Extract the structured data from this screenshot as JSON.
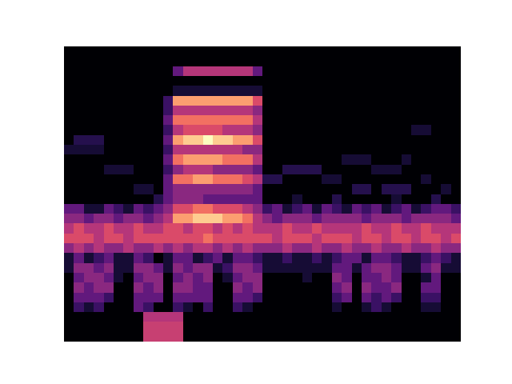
{
  "chart_data": {
    "type": "heatmap",
    "color": "magma",
    "zlim": [
      0,
      1
    ],
    "tick_labels": false,
    "cells": [
      [
        0,
        0,
        0,
        0,
        0,
        0,
        0,
        0,
        0,
        0,
        0,
        0,
        0,
        0,
        0,
        0,
        0,
        0,
        0,
        0,
        0,
        0,
        0,
        0,
        0,
        0,
        0,
        0,
        0,
        0,
        0,
        0,
        0,
        0,
        0,
        0,
        0,
        0,
        0,
        0
      ],
      [
        0,
        0,
        0,
        0,
        0,
        0,
        0,
        0,
        0,
        0,
        0,
        0,
        0,
        0,
        0,
        0,
        0,
        0,
        0,
        0,
        0,
        0,
        0,
        0,
        0,
        0,
        0,
        0,
        0,
        0,
        0,
        0,
        0,
        0,
        0,
        0,
        0,
        0,
        0,
        0
      ],
      [
        0,
        0,
        0,
        0,
        0,
        0,
        0,
        0,
        0,
        0,
        0,
        0.3,
        0.5,
        0.5,
        0.5,
        0.5,
        0.5,
        0.5,
        0.5,
        0.3,
        0,
        0,
        0,
        0,
        0,
        0,
        0,
        0,
        0,
        0,
        0,
        0,
        0,
        0,
        0,
        0,
        0,
        0,
        0,
        0
      ],
      [
        0,
        0,
        0,
        0,
        0,
        0,
        0,
        0,
        0,
        0,
        0,
        0,
        0,
        0,
        0,
        0,
        0,
        0,
        0,
        0,
        0,
        0,
        0,
        0,
        0,
        0,
        0,
        0,
        0,
        0,
        0,
        0,
        0,
        0,
        0,
        0,
        0,
        0,
        0,
        0
      ],
      [
        0,
        0,
        0,
        0,
        0,
        0,
        0,
        0,
        0,
        0,
        0,
        0.1,
        0.1,
        0.1,
        0.1,
        0.1,
        0.1,
        0.1,
        0.1,
        0.1,
        0,
        0,
        0,
        0,
        0,
        0,
        0,
        0,
        0,
        0,
        0,
        0,
        0,
        0,
        0,
        0,
        0,
        0,
        0,
        0
      ],
      [
        0,
        0,
        0,
        0,
        0,
        0,
        0,
        0,
        0,
        0,
        0.2,
        0.8,
        0.8,
        0.8,
        0.8,
        0.8,
        0.8,
        0.8,
        0.8,
        0.6,
        0,
        0,
        0,
        0,
        0,
        0,
        0,
        0,
        0,
        0,
        0,
        0,
        0,
        0,
        0,
        0,
        0,
        0,
        0,
        0
      ],
      [
        0,
        0,
        0,
        0,
        0,
        0,
        0,
        0,
        0,
        0,
        0.2,
        0.5,
        0.5,
        0.5,
        0.5,
        0.5,
        0.5,
        0.5,
        0.5,
        0.4,
        0,
        0,
        0,
        0,
        0,
        0,
        0,
        0,
        0,
        0,
        0,
        0,
        0,
        0,
        0,
        0,
        0,
        0,
        0,
        0
      ],
      [
        0,
        0,
        0,
        0,
        0,
        0,
        0,
        0,
        0,
        0,
        0.3,
        0.7,
        0.7,
        0.7,
        0.7,
        0.7,
        0.7,
        0.7,
        0.7,
        0.5,
        0,
        0,
        0,
        0,
        0,
        0,
        0,
        0,
        0,
        0,
        0,
        0,
        0,
        0,
        0,
        0,
        0,
        0,
        0,
        0
      ],
      [
        0,
        0,
        0,
        0,
        0,
        0,
        0,
        0,
        0,
        0,
        0.2,
        0.5,
        0.6,
        0.6,
        0.6,
        0.6,
        0.5,
        0.5,
        0.5,
        0.4,
        0,
        0,
        0,
        0,
        0,
        0,
        0,
        0,
        0,
        0,
        0,
        0,
        0,
        0,
        0,
        0.1,
        0.1,
        0,
        0,
        0
      ],
      [
        0,
        0.15,
        0.15,
        0.15,
        0,
        0,
        0,
        0,
        0,
        0,
        0.3,
        0.8,
        0.9,
        0.9,
        1.0,
        0.9,
        0.9,
        0.8,
        0.8,
        0.6,
        0,
        0,
        0,
        0,
        0,
        0,
        0,
        0,
        0,
        0,
        0,
        0,
        0,
        0,
        0,
        0,
        0,
        0,
        0,
        0
      ],
      [
        0.1,
        0.1,
        0.1,
        0.1,
        0,
        0,
        0,
        0,
        0,
        0,
        0.2,
        0.5,
        0.5,
        0.5,
        0.5,
        0.5,
        0.5,
        0.5,
        0.4,
        0.4,
        0,
        0,
        0,
        0,
        0,
        0,
        0,
        0,
        0,
        0,
        0,
        0,
        0,
        0,
        0,
        0,
        0,
        0,
        0,
        0
      ],
      [
        0,
        0,
        0,
        0,
        0,
        0,
        0,
        0,
        0,
        0,
        0.3,
        0.7,
        0.8,
        0.8,
        0.8,
        0.8,
        0.7,
        0.7,
        0.7,
        0.5,
        0,
        0,
        0,
        0,
        0,
        0,
        0,
        0,
        0.1,
        0.1,
        0.1,
        0,
        0,
        0,
        0.1,
        0,
        0,
        0,
        0,
        0
      ],
      [
        0,
        0,
        0,
        0,
        0.1,
        0.1,
        0.1,
        0,
        0,
        0,
        0.2,
        0.4,
        0.5,
        0.5,
        0.5,
        0.4,
        0.4,
        0.4,
        0.4,
        0.3,
        0,
        0,
        0.15,
        0.15,
        0.15,
        0.15,
        0,
        0,
        0,
        0,
        0,
        0.1,
        0.1,
        0.1,
        0,
        0,
        0,
        0,
        0,
        0
      ],
      [
        0,
        0,
        0,
        0,
        0,
        0,
        0,
        0,
        0,
        0,
        0.3,
        0.7,
        0.7,
        0.8,
        0.8,
        0.7,
        0.7,
        0.7,
        0.6,
        0.5,
        0.15,
        0.15,
        0,
        0,
        0,
        0,
        0.1,
        0.1,
        0,
        0,
        0,
        0,
        0,
        0,
        0,
        0,
        0.1,
        0,
        0,
        0
      ],
      [
        0,
        0,
        0,
        0,
        0,
        0,
        0,
        0.1,
        0.1,
        0,
        0.3,
        0.4,
        0.4,
        0.4,
        0.4,
        0.4,
        0.4,
        0.4,
        0.4,
        0.3,
        0,
        0,
        0,
        0,
        0,
        0,
        0,
        0,
        0,
        0.15,
        0.15,
        0,
        0.15,
        0.15,
        0.15,
        0,
        0,
        0,
        0.1,
        0
      ],
      [
        0,
        0,
        0,
        0,
        0,
        0,
        0,
        0,
        0,
        0.15,
        0.3,
        0.4,
        0.4,
        0.4,
        0.3,
        0.3,
        0.3,
        0.3,
        0.3,
        0.3,
        0,
        0,
        0,
        0.1,
        0,
        0,
        0,
        0.15,
        0,
        0,
        0,
        0,
        0,
        0.1,
        0,
        0,
        0,
        0.15,
        0,
        0
      ],
      [
        0.3,
        0.3,
        0.1,
        0.1,
        0.3,
        0.2,
        0.1,
        0.3,
        0.2,
        0.3,
        0.4,
        0.6,
        0.6,
        0.7,
        0.7,
        0.6,
        0.6,
        0.6,
        0.5,
        0.4,
        0.2,
        0.3,
        0.1,
        0.2,
        0.3,
        0.1,
        0.3,
        0.2,
        0.1,
        0.3,
        0.2,
        0.3,
        0.1,
        0.2,
        0.3,
        0.1,
        0.2,
        0.3,
        0.3,
        0.2
      ],
      [
        0.4,
        0.4,
        0.3,
        0.4,
        0.4,
        0.3,
        0.4,
        0.4,
        0.3,
        0.4,
        0.5,
        0.8,
        0.8,
        0.9,
        0.9,
        0.9,
        0.8,
        0.8,
        0.7,
        0.5,
        0.4,
        0.3,
        0.4,
        0.4,
        0.4,
        0.3,
        0.4,
        0.4,
        0.4,
        0.4,
        0.3,
        0.4,
        0.4,
        0.4,
        0.3,
        0.4,
        0.4,
        0.4,
        0.4,
        0.3
      ],
      [
        0.5,
        0.6,
        0.5,
        0.5,
        0.6,
        0.5,
        0.5,
        0.6,
        0.5,
        0.5,
        0.6,
        0.6,
        0.5,
        0.6,
        0.6,
        0.5,
        0.6,
        0.5,
        0.6,
        0.5,
        0.5,
        0.5,
        0.6,
        0.5,
        0.5,
        0.6,
        0.5,
        0.5,
        0.5,
        0.5,
        0.6,
        0.5,
        0.5,
        0.6,
        0.5,
        0.5,
        0.6,
        0.5,
        0.5,
        0.5
      ],
      [
        0.6,
        0.6,
        0.6,
        0.5,
        0.6,
        0.6,
        0.5,
        0.6,
        0.6,
        0.6,
        0.6,
        0.6,
        0.6,
        0.6,
        0.7,
        0.6,
        0.6,
        0.6,
        0.6,
        0.6,
        0.6,
        0.5,
        0.6,
        0.6,
        0.6,
        0.5,
        0.6,
        0.6,
        0.6,
        0.5,
        0.6,
        0.6,
        0.5,
        0.6,
        0.6,
        0.5,
        0.6,
        0.6,
        0.5,
        0.6
      ],
      [
        0.4,
        0.5,
        0.4,
        0.5,
        0.4,
        0.4,
        0.5,
        0.4,
        0.4,
        0.5,
        0.4,
        0.5,
        0.4,
        0.5,
        0.5,
        0.4,
        0.5,
        0.4,
        0.5,
        0.4,
        0.4,
        0.4,
        0.5,
        0.4,
        0.4,
        0.5,
        0.4,
        0.4,
        0.5,
        0.4,
        0.4,
        0.5,
        0.4,
        0.4,
        0.5,
        0.4,
        0.4,
        0.5,
        0.4,
        0.4
      ],
      [
        0.1,
        0.3,
        0.1,
        0.2,
        0.3,
        0.1,
        0.1,
        0.3,
        0.2,
        0,
        0.1,
        0.3,
        0.3,
        0.1,
        0.2,
        0.3,
        0.1,
        0.3,
        0.3,
        0.2,
        0.1,
        0.1,
        0.2,
        0.1,
        0.1,
        0.2,
        0.1,
        0.2,
        0.3,
        0.3,
        0.1,
        0.3,
        0.3,
        0.2,
        0.1,
        0.1,
        0.2,
        0.3,
        0.2,
        0.1
      ],
      [
        0.1,
        0.4,
        0.4,
        0.3,
        0.4,
        0.1,
        0.1,
        0.4,
        0.4,
        0.3,
        0.1,
        0.4,
        0.3,
        0.4,
        0.4,
        0.1,
        0.2,
        0.4,
        0.4,
        0.3,
        0.1,
        0.1,
        0.1,
        0.1,
        0.1,
        0.1,
        0.1,
        0.3,
        0.3,
        0.1,
        0.3,
        0.4,
        0.4,
        0.3,
        0.1,
        0.1,
        0.3,
        0.4,
        0.1,
        0.1
      ],
      [
        0,
        0.3,
        0.4,
        0.4,
        0.3,
        0.1,
        0,
        0.3,
        0.4,
        0.4,
        0,
        0.3,
        0.4,
        0.3,
        0.4,
        0,
        0.1,
        0.3,
        0.4,
        0.4,
        0,
        0,
        0,
        0,
        0.1,
        0,
        0,
        0.4,
        0.3,
        0,
        0.3,
        0.3,
        0.4,
        0.3,
        0,
        0,
        0.1,
        0.3,
        0,
        0
      ],
      [
        0,
        0.4,
        0.3,
        0.4,
        0.4,
        0,
        0,
        0.4,
        0.3,
        0.4,
        0,
        0.4,
        0.4,
        0.3,
        0.3,
        0,
        0,
        0.4,
        0.3,
        0.4,
        0,
        0,
        0,
        0,
        0,
        0,
        0,
        0.3,
        0.4,
        0,
        0.4,
        0.3,
        0.3,
        0.4,
        0,
        0,
        0.3,
        0.3,
        0,
        0
      ],
      [
        0,
        0.3,
        0.3,
        0.3,
        0.2,
        0,
        0,
        0.3,
        0.3,
        0.3,
        0,
        0.3,
        0.3,
        0.3,
        0.3,
        0,
        0,
        0.3,
        0.3,
        0.2,
        0,
        0,
        0,
        0,
        0,
        0,
        0,
        0.2,
        0.3,
        0,
        0.3,
        0.2,
        0.3,
        0.2,
        0,
        0,
        0.2,
        0.2,
        0,
        0
      ],
      [
        0,
        0.2,
        0.1,
        0.2,
        0,
        0,
        0,
        0.3,
        0.2,
        0,
        0,
        0.2,
        0.1,
        0,
        0.2,
        0,
        0,
        0.2,
        0.1,
        0,
        0,
        0,
        0,
        0,
        0,
        0,
        0,
        0.1,
        0,
        0,
        0.1,
        0.2,
        0.1,
        0,
        0,
        0,
        0.1,
        0.1,
        0,
        0
      ],
      [
        0,
        0,
        0,
        0,
        0,
        0,
        0,
        0,
        0.5,
        0.5,
        0.5,
        0.5,
        0,
        0,
        0,
        0,
        0,
        0,
        0,
        0,
        0,
        0,
        0,
        0,
        0,
        0,
        0,
        0,
        0,
        0,
        0,
        0,
        0,
        0,
        0,
        0,
        0,
        0,
        0,
        0
      ],
      [
        0,
        0,
        0,
        0,
        0,
        0,
        0,
        0,
        0.55,
        0.55,
        0.55,
        0.55,
        0,
        0,
        0,
        0,
        0,
        0,
        0,
        0,
        0,
        0,
        0,
        0,
        0,
        0,
        0,
        0,
        0,
        0,
        0,
        0,
        0,
        0,
        0,
        0,
        0,
        0,
        0,
        0
      ],
      [
        0,
        0,
        0,
        0,
        0,
        0,
        0,
        0,
        0.55,
        0.55,
        0.55,
        0.55,
        0,
        0,
        0,
        0,
        0,
        0,
        0,
        0,
        0,
        0,
        0,
        0,
        0,
        0,
        0,
        0,
        0,
        0,
        0,
        0,
        0,
        0,
        0,
        0,
        0,
        0,
        0,
        0
      ]
    ]
  }
}
